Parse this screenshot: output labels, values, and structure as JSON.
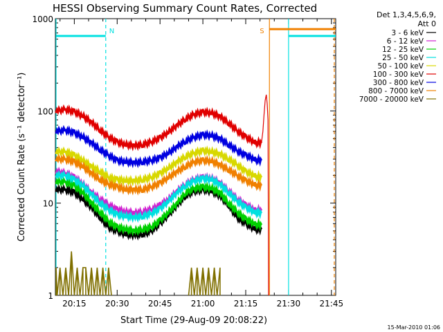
{
  "chart_data": {
    "type": "line",
    "title": "HESSI Observing Summary Count Rates, Corrected",
    "xlabel": "Start Time (29-Aug-09 20:08:22)",
    "ylabel": "Corrected Count Rate (s⁻¹ detector⁻¹)",
    "y_scale": "log",
    "ylim": [
      1,
      1000
    ],
    "y_ticks": [
      1,
      10,
      100,
      1000
    ],
    "y_tick_labels": [
      "1",
      "10",
      "100",
      "1000"
    ],
    "x_range_min": [
      8.3667,
      106.5
    ],
    "x_ticks_min": [
      15,
      30,
      45,
      60,
      75,
      90,
      105
    ],
    "x_tick_labels": [
      "20:15",
      "20:30",
      "20:45",
      "21:00",
      "21:15",
      "21:30",
      "21:45"
    ],
    "legend": {
      "header1": "Det 1,3,4,5,6,9,",
      "header2": "Att 0",
      "placement": "right"
    },
    "series": [
      {
        "name": "3 - 6 keV",
        "color": "#000000",
        "x": [
          8.6,
          12,
          15,
          18,
          21,
          24,
          27,
          30,
          33,
          36,
          39,
          42,
          45,
          48,
          51,
          54,
          57,
          60,
          63,
          66,
          69,
          72,
          75,
          78,
          80.5
        ],
        "values": [
          14,
          14,
          13,
          11,
          9,
          7,
          5.5,
          5,
          4.6,
          4.5,
          4.6,
          5,
          6,
          7.5,
          9.5,
          12,
          13.5,
          14,
          13.5,
          12,
          9.5,
          7,
          6,
          5.3,
          5.2
        ]
      },
      {
        "name": "6 - 12 keV",
        "color": "#d020d0",
        "x": [
          8.6,
          12,
          15,
          18,
          21,
          24,
          27,
          30,
          33,
          36,
          39,
          42,
          45,
          48,
          51,
          54,
          57,
          60,
          63,
          66,
          69,
          72,
          75,
          78,
          80.5
        ],
        "values": [
          22,
          21,
          19,
          16,
          13,
          11,
          9.5,
          8.5,
          8,
          7.8,
          8,
          8.5,
          9.5,
          11,
          13.5,
          16,
          18,
          19,
          18.5,
          16.5,
          13.5,
          11,
          9.5,
          8.5,
          8.3
        ]
      },
      {
        "name": "12 - 25 keV",
        "color": "#00d000",
        "x": [
          8.6,
          12,
          15,
          18,
          21,
          24,
          27,
          30,
          33,
          36,
          39,
          42,
          45,
          48,
          51,
          54,
          57,
          60,
          63,
          66,
          69,
          72,
          75,
          78,
          80.5
        ],
        "values": [
          17,
          17,
          15.5,
          13,
          10,
          8,
          6.3,
          5.5,
          5.2,
          5,
          5.2,
          5.5,
          6.5,
          8,
          10,
          13,
          14.5,
          15,
          14.5,
          13,
          10,
          8,
          6.7,
          6,
          5.8
        ]
      },
      {
        "name": "25 - 50 keV",
        "color": "#00e0e0",
        "x": [
          8.6,
          12,
          15,
          18,
          21,
          24,
          27,
          30,
          33,
          36,
          39,
          42,
          45,
          48,
          51,
          54,
          57,
          60,
          63,
          66,
          69,
          72,
          75,
          78,
          80.5
        ],
        "values": [
          20,
          20,
          18,
          15.5,
          12.5,
          10,
          8.5,
          7.5,
          7.2,
          7,
          7.2,
          7.7,
          8.7,
          10.5,
          13,
          15.5,
          17.5,
          18.5,
          18,
          16,
          13,
          10.5,
          9,
          8,
          7.8
        ]
      },
      {
        "name": "50 - 100 keV",
        "color": "#d8d800",
        "x": [
          8.6,
          12,
          15,
          18,
          21,
          24,
          27,
          30,
          33,
          36,
          39,
          42,
          45,
          48,
          51,
          54,
          57,
          60,
          63,
          66,
          69,
          72,
          75,
          78,
          80.5
        ],
        "values": [
          36,
          36,
          33,
          29,
          25,
          22,
          19,
          18,
          17.5,
          17.5,
          18,
          19,
          21,
          24,
          28,
          32,
          35,
          37,
          36,
          34,
          30,
          26,
          22,
          20,
          19
        ]
      },
      {
        "name": "100 - 300 keV",
        "color": "#e00000",
        "x": [
          8.6,
          12,
          15,
          18,
          21,
          24,
          27,
          30,
          33,
          36,
          39,
          42,
          45,
          48,
          51,
          54,
          57,
          60,
          63,
          66,
          69,
          72,
          75,
          78,
          80.5
        ],
        "values": [
          100,
          104,
          98,
          88,
          75,
          62,
          52,
          46,
          43,
          42,
          43,
          46,
          51,
          59,
          70,
          82,
          92,
          97,
          95,
          87,
          74,
          61,
          52,
          46,
          45
        ]
      },
      {
        "name": "300 - 800 keV",
        "color": "#0000e0",
        "x": [
          8.6,
          12,
          15,
          18,
          21,
          24,
          27,
          30,
          33,
          36,
          39,
          42,
          45,
          48,
          51,
          54,
          57,
          60,
          63,
          66,
          69,
          72,
          75,
          78,
          80.5
        ],
        "values": [
          60,
          62,
          58,
          52,
          45,
          38,
          33,
          29,
          28,
          27.5,
          28,
          29,
          31,
          35,
          41,
          47,
          52,
          55,
          54,
          50,
          43,
          37,
          33,
          30,
          29
        ]
      },
      {
        "name": "800 - 7000 keV",
        "color": "#f08000",
        "x": [
          8.6,
          12,
          15,
          18,
          21,
          24,
          27,
          30,
          33,
          36,
          39,
          42,
          45,
          48,
          51,
          54,
          57,
          60,
          63,
          66,
          69,
          72,
          75,
          78,
          80.5
        ],
        "values": [
          30,
          30,
          28,
          25,
          21,
          18,
          16,
          15,
          14,
          14,
          14,
          15,
          16.5,
          19,
          22,
          25,
          28,
          29,
          28.5,
          26,
          23,
          20,
          17.5,
          16,
          15.5
        ]
      },
      {
        "name": "7000 - 20000 keV",
        "color": "#807000",
        "segments": [
          {
            "x": [
              8.6,
              9,
              10,
              11,
              12,
              13,
              14,
              15,
              16,
              17,
              18,
              19,
              20,
              21,
              22,
              23,
              24,
              25,
              26,
              27,
              28
            ],
            "values": [
              2,
              1,
              2,
              1,
              2,
              1,
              3,
              1,
              2,
              1,
              2,
              2,
              1,
              2,
              1,
              2,
              1,
              2,
              1,
              2,
              1
            ]
          },
          {
            "x": [
              55,
              56,
              57,
              58,
              59,
              60,
              61,
              62,
              63,
              64,
              65,
              66
            ],
            "values": [
              1,
              2,
              1,
              2,
              1,
              2,
              1,
              2,
              1,
              2,
              1,
              2
            ]
          }
        ]
      },
      {
        "name": "rise-spike",
        "color": "#e00000",
        "x": [
          80.5,
          81,
          81.4,
          81.8,
          82.2,
          82.5,
          82.8,
          83
        ],
        "values": [
          45,
          60,
          90,
          130,
          150,
          120,
          80,
          1
        ]
      }
    ],
    "markers": {
      "N": {
        "label": "N",
        "x_min": 26,
        "color": "#00e0e0"
      },
      "S": {
        "label": "S",
        "x_min": 83.3,
        "color": "#f08000"
      }
    },
    "bars": [
      {
        "name": "night-bar-left",
        "x_start": 8.6,
        "x_end": 26,
        "y": 650,
        "color": "#00e0e0"
      },
      {
        "name": "night-bar-right",
        "x_start": 90,
        "x_end": 106.5,
        "y": 650,
        "color": "#00e0e0"
      },
      {
        "name": "saa-bar",
        "x_start": 83.3,
        "x_end": 106.5,
        "y": 770,
        "color": "#f08000"
      }
    ],
    "vlines": [
      {
        "name": "solid-cyan-left",
        "x_min": 8.6,
        "color": "#00e0e0",
        "dash": false
      },
      {
        "name": "dashed-cyan-n",
        "x_min": 26,
        "color": "#00e0e0",
        "dash": true
      },
      {
        "name": "solid-orange-s",
        "x_min": 83.3,
        "color": "#f08000",
        "dash": false
      },
      {
        "name": "solid-cyan-right",
        "x_min": 90,
        "color": "#00e0e0",
        "dash": false
      },
      {
        "name": "dashed-orange-right",
        "x_min": 106,
        "color": "#f08000",
        "dash": true
      }
    ],
    "timestamp": "15-Mar-2010 01:06"
  }
}
